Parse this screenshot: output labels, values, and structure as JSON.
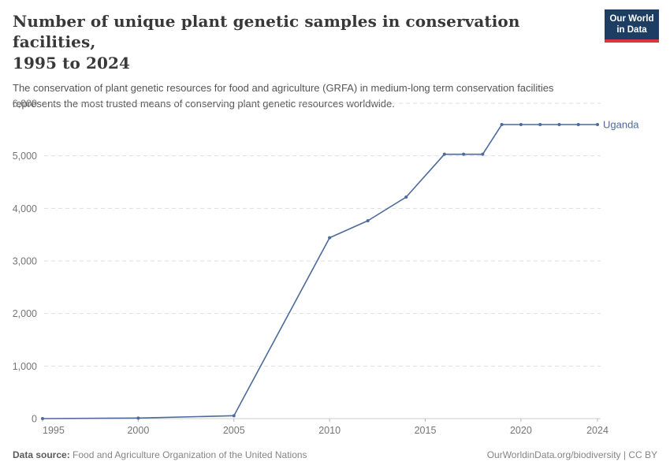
{
  "header": {
    "title_line1": "Number of unique plant genetic samples in conservation facilities,",
    "title_line2": "1995 to 2024",
    "subtitle": "The conservation of plant genetic resources for food and agriculture (GRFA) in medium-long term conservation facilities represents the most trusted means of conserving plant genetic resources worldwide."
  },
  "logo": {
    "line1": "Our World",
    "line2": "in Data",
    "bg_color": "#1d3d63",
    "bar_color": "#d8353c"
  },
  "chart_data": {
    "type": "line",
    "title": "Number of unique plant genetic samples in conservation facilities, 1995 to 2024",
    "xlabel": "",
    "ylabel": "",
    "xlim": [
      1995,
      2024
    ],
    "ylim": [
      0,
      6000
    ],
    "xticks": [
      1995,
      2000,
      2005,
      2010,
      2015,
      2020,
      2024
    ],
    "yticks": [
      0,
      1000,
      2000,
      3000,
      4000,
      5000,
      6000
    ],
    "grid": "horizontal-dashed",
    "legend_position": "end-of-line-label",
    "series": [
      {
        "name": "Uganda",
        "color": "#4c6a9c",
        "x": [
          1995,
          2000,
          2005,
          2010,
          2012,
          2014,
          2016,
          2017,
          2018,
          2019,
          2020,
          2021,
          2022,
          2023,
          2024
        ],
        "values": [
          0,
          10,
          55,
          3440,
          3765,
          4215,
          5030,
          5030,
          5030,
          5595,
          5595,
          5595,
          5595,
          5595,
          5595
        ]
      }
    ],
    "colors": {
      "gridline": "#dddddd",
      "axis_line": "#cccccc",
      "tick_mark": "#b5b5b5",
      "tick_label": "#757575"
    }
  },
  "footer": {
    "source_label": "Data source:",
    "source_text": "Food and Agriculture Organization of the United Nations",
    "link_text": "OurWorldinData.org/biodiversity | CC BY"
  }
}
